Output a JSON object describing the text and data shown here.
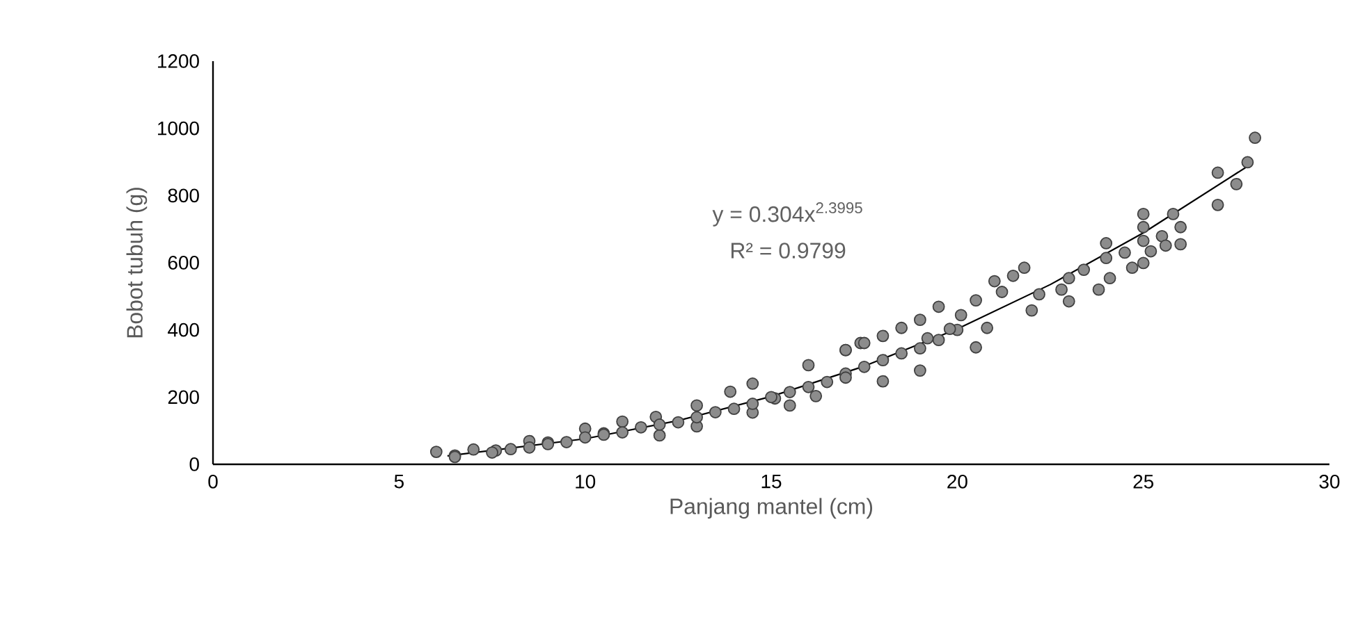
{
  "chart_data": {
    "type": "scatter",
    "xlabel": "Panjang mantel (cm)",
    "ylabel": "Bobot tubuh (g)",
    "xlim": [
      0,
      30
    ],
    "xticks": [
      0,
      5,
      10,
      15,
      20,
      25,
      30
    ],
    "ylim": [
      0,
      1200
    ],
    "yticks": [
      0,
      200,
      400,
      600,
      800,
      1000,
      1200
    ],
    "grid": false,
    "annotations": [
      "y = 0.304x$^{2.3995}$",
      "R² = 0.9799"
    ],
    "series": [
      {
        "marker": "circle",
        "color": "#8c8c8c",
        "x": [
          6.0,
          6.5,
          7.0,
          7.6,
          8.5,
          9.0,
          10.0,
          10.5,
          11.0,
          11.9,
          12.0,
          13.0,
          13.0,
          13.9,
          14.5,
          14.5,
          15.1,
          15.5,
          16.0,
          16.2,
          17.0,
          17.4,
          6.5,
          7.5,
          8.0,
          8.5,
          9.0,
          9.5,
          10.0,
          10.5,
          11.0,
          11.5,
          12.0,
          12.5,
          13.0,
          13.5,
          14.0,
          14.5,
          15.0,
          15.5,
          16.0,
          16.5,
          17.0,
          17.5,
          18.0,
          18.5,
          19.0,
          19.5,
          20.0,
          17.0,
          17.0,
          17.5,
          18.0,
          18.0,
          18.5,
          19.0,
          19.0,
          19.5,
          19.2,
          19.8,
          20.1,
          20.5,
          20.5,
          20.8,
          21.0,
          21.2,
          21.5,
          21.8,
          22.0,
          22.2,
          22.8,
          23.0,
          23.0,
          23.4,
          23.8,
          24.1,
          24.0,
          24.0,
          24.5,
          24.7,
          25.2,
          25.0,
          25.0,
          25.0,
          25.0,
          25.5,
          25.6,
          26.0,
          26.0,
          25.8,
          27.0,
          27.5,
          27.0,
          27.8,
          28.0
        ],
        "values": [
          37,
          26,
          44,
          41,
          69,
          65,
          106,
          92,
          127,
          141,
          86,
          175,
          113,
          216,
          240,
          154,
          196,
          175,
          295,
          203,
          340,
          361,
          22,
          35,
          45,
          50,
          60,
          66,
          80,
          88,
          95,
          110,
          118,
          125,
          140,
          155,
          165,
          180,
          200,
          215,
          230,
          245,
          270,
          290,
          310,
          330,
          345,
          370,
          400,
          340,
          258,
          361,
          382,
          247,
          406,
          430,
          279,
          469,
          375,
          403,
          444,
          488,
          348,
          406,
          545,
          513,
          561,
          585,
          458,
          506,
          520,
          554,
          485,
          579,
          520,
          554,
          658,
          614,
          630,
          585,
          634,
          599,
          665,
          706,
          745,
          679,
          651,
          655,
          706,
          745,
          772,
          834,
          868,
          899,
          972
        ]
      },
      {
        "type": "line",
        "marker": "none",
        "line_style": "solid",
        "color": "#000000",
        "x": [
          6.3,
          10,
          12.5,
          15,
          17.5,
          20,
          22.5,
          25,
          27.8
        ],
        "values": [
          25,
          76,
          130,
          202,
          292,
          403,
          535,
          689,
          887
        ]
      }
    ]
  }
}
